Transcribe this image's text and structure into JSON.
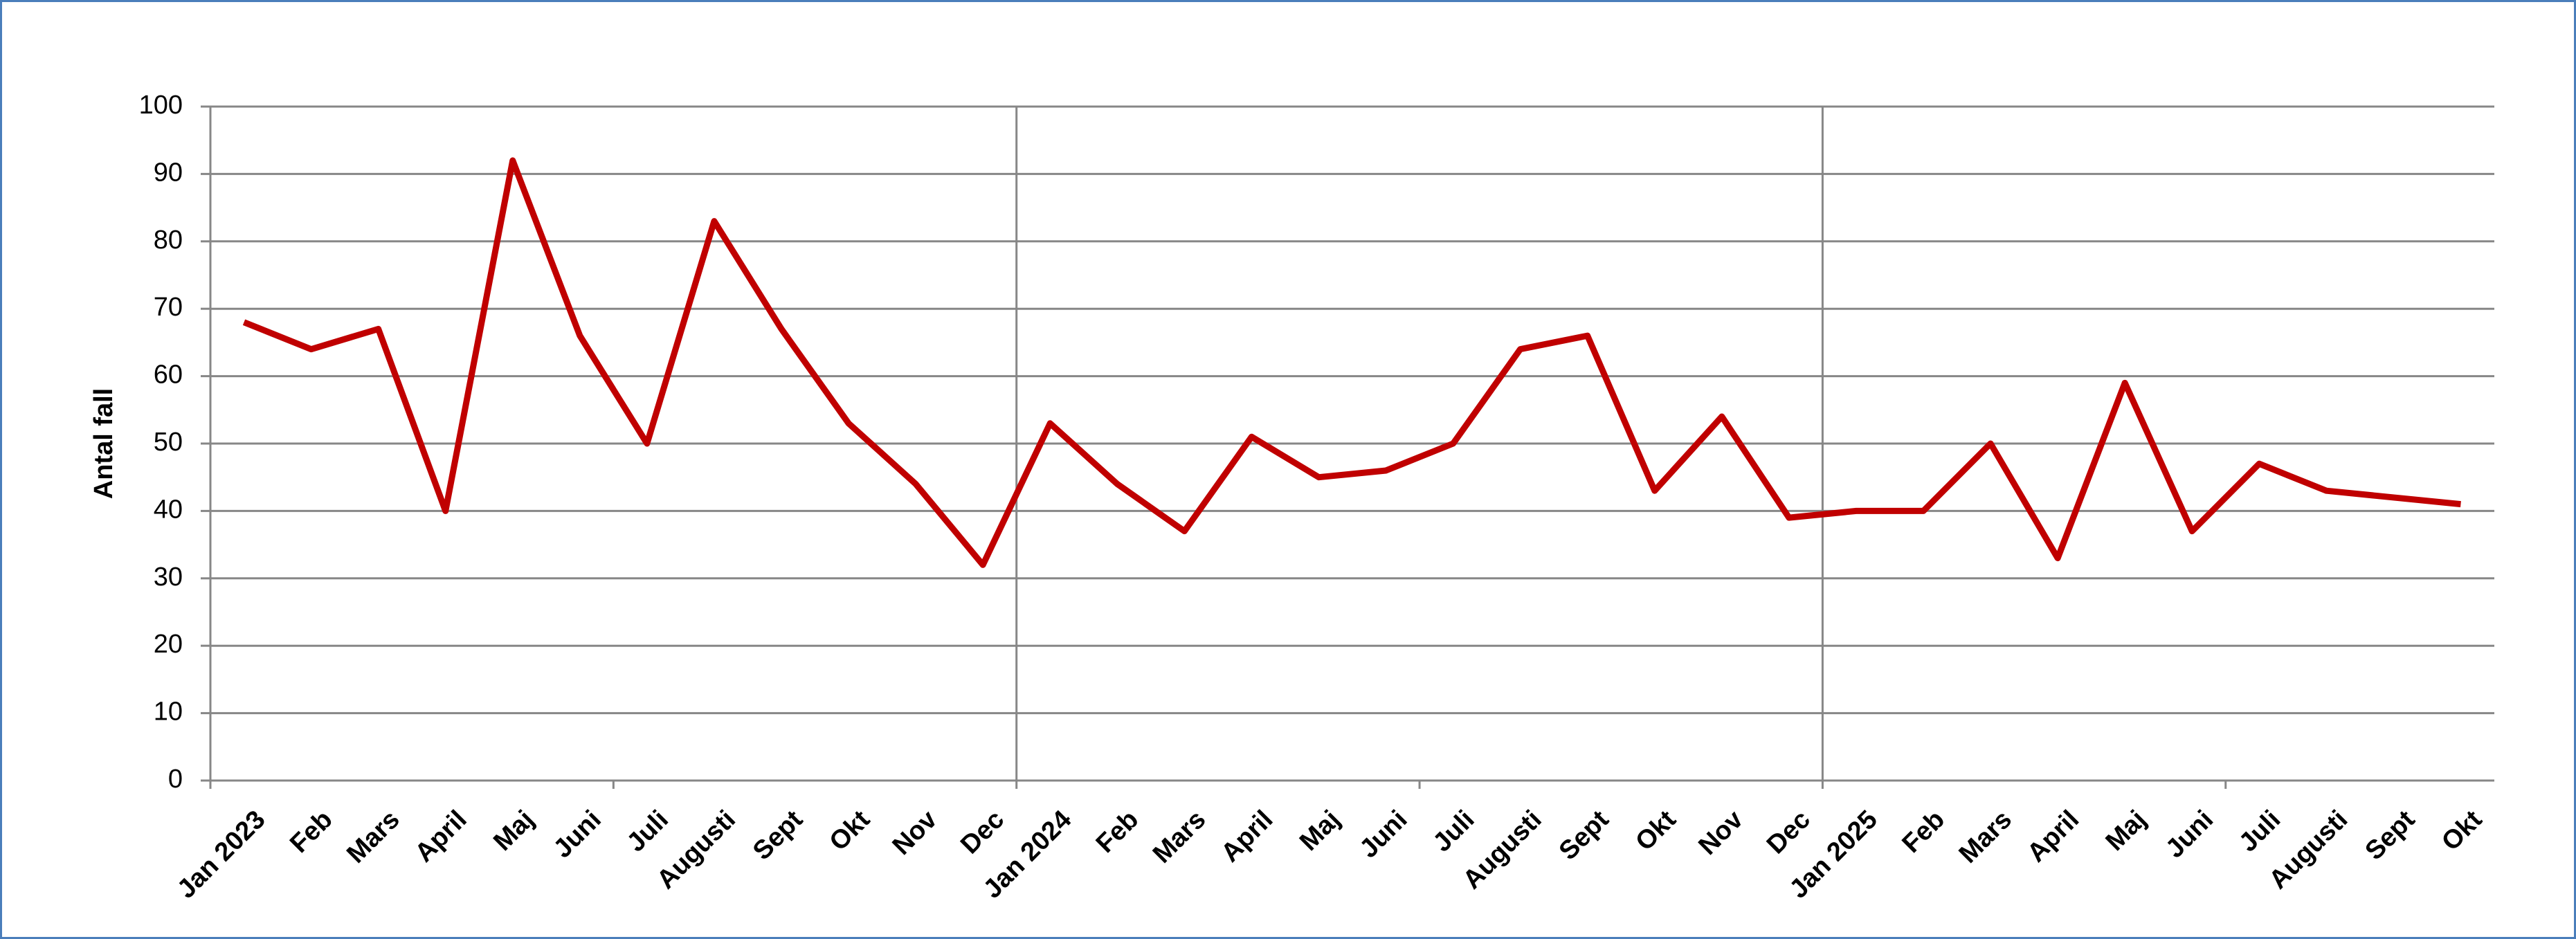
{
  "chart_data": {
    "type": "line",
    "y_label": "Antal fall",
    "categories": [
      "Jan 2023",
      "Feb",
      "Mars",
      "April",
      "Maj",
      "Juni",
      "Juli",
      "Augusti",
      "Sept",
      "Okt",
      "Nov",
      "Dec",
      "Jan 2024",
      "Feb",
      "Mars",
      "April",
      "Maj",
      "Juni",
      "Juli",
      "Augusti",
      "Sept",
      "Okt",
      "Nov",
      "Dec",
      "Jan 2025",
      "Feb",
      "Mars",
      "April",
      "Maj",
      "Juni",
      "Juli",
      "Augusti",
      "Sept",
      "Okt"
    ],
    "values": [
      68,
      64,
      67,
      40,
      92,
      66,
      50,
      83,
      67,
      53,
      44,
      32,
      53,
      44,
      37,
      51,
      45,
      46,
      50,
      64,
      66,
      43,
      54,
      39,
      40,
      40,
      50,
      33,
      59,
      37,
      47,
      43,
      42,
      41
    ],
    "color": "#c00000",
    "ylim": [
      0,
      100
    ],
    "yticks": [
      0,
      10,
      20,
      30,
      40,
      50,
      60,
      70,
      80,
      90,
      100
    ],
    "grid": true
  }
}
